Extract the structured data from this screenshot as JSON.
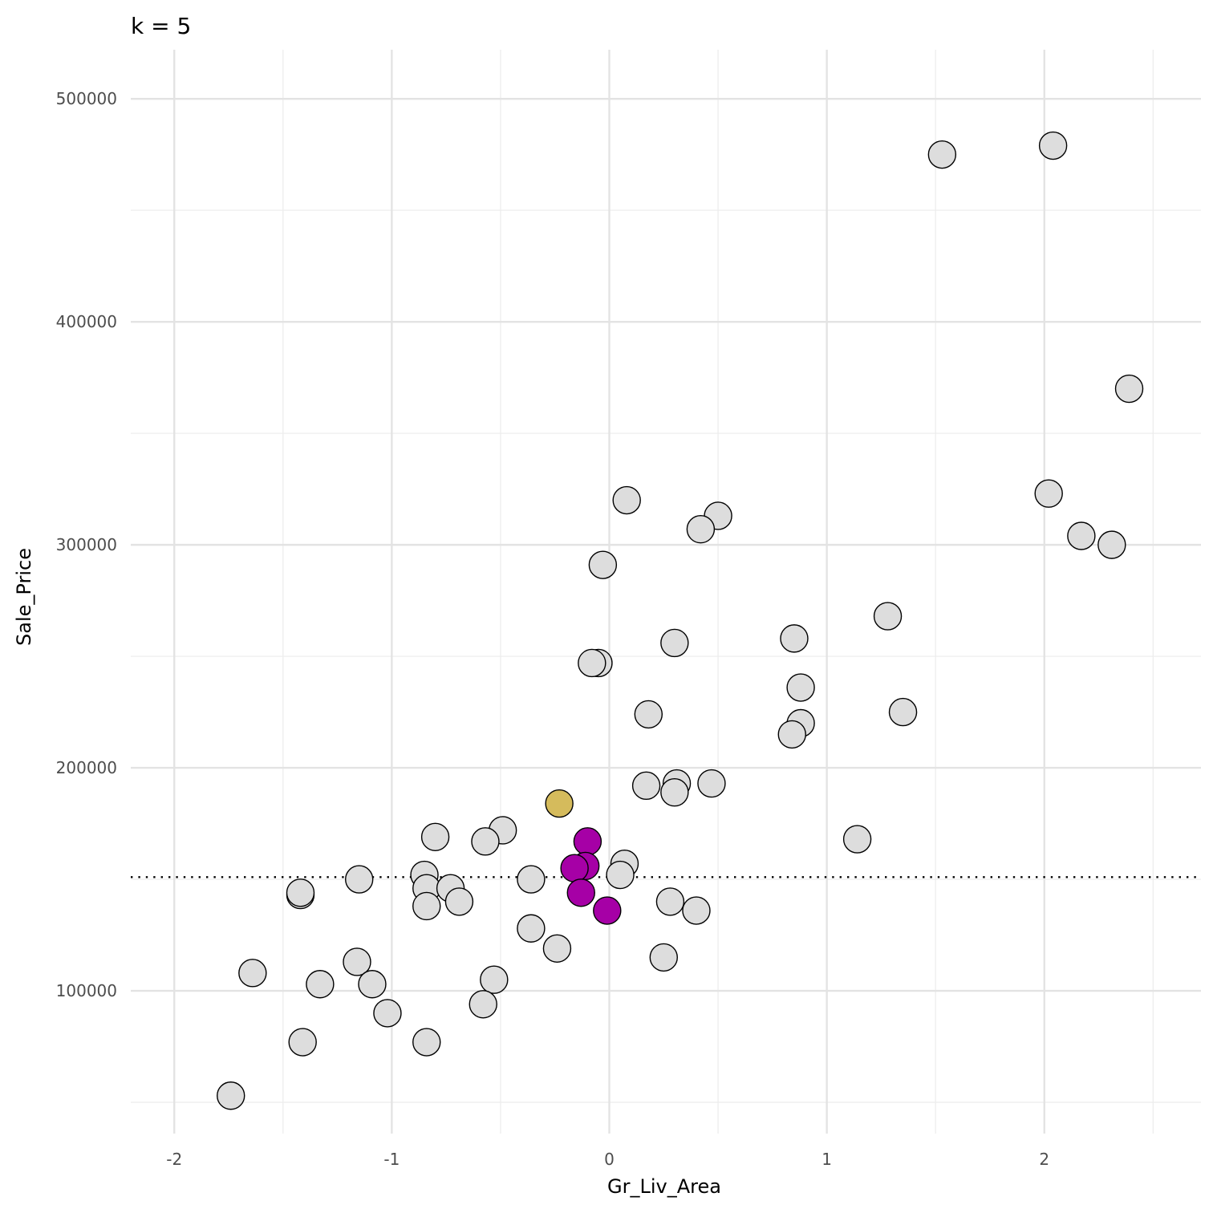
{
  "chart_data": {
    "type": "scatter",
    "title": "k = 5",
    "xlabel": "Gr_Liv_Area",
    "ylabel": "Sale_Price",
    "xlim": [
      -2.2,
      2.72
    ],
    "ylim": [
      36000,
      522000
    ],
    "x_ticks": [
      -2,
      -1,
      0,
      1,
      2
    ],
    "y_ticks": [
      100000,
      200000,
      300000,
      400000,
      500000
    ],
    "x_minor": [
      -1.5,
      -0.5,
      0.5,
      1.5,
      2.5
    ],
    "y_minor": [
      50000,
      150000,
      250000,
      350000,
      450000
    ],
    "x_tick_labels": [
      "-2",
      "-1",
      "0",
      "1",
      "2"
    ],
    "y_tick_labels": [
      "100000",
      "200000",
      "300000",
      "400000",
      "500000"
    ],
    "grid": true,
    "legend": "none",
    "reference_line": {
      "orientation": "horizontal",
      "style": "dotted",
      "y": 151000,
      "color": "#000000"
    },
    "colors": {
      "other": "#dddddd",
      "neighbor": "#a600a6",
      "query": "#d5bb5c",
      "outline": "#000000"
    },
    "points": [
      {
        "x": 1.53,
        "y": 475000,
        "group": "other"
      },
      {
        "x": 2.04,
        "y": 479000,
        "group": "other"
      },
      {
        "x": 2.39,
        "y": 370000,
        "group": "other"
      },
      {
        "x": 2.02,
        "y": 323000,
        "group": "other"
      },
      {
        "x": 2.17,
        "y": 304000,
        "group": "other"
      },
      {
        "x": 2.31,
        "y": 300000,
        "group": "other"
      },
      {
        "x": 0.08,
        "y": 320000,
        "group": "other"
      },
      {
        "x": 0.5,
        "y": 313000,
        "group": "other"
      },
      {
        "x": 0.42,
        "y": 307000,
        "group": "other"
      },
      {
        "x": -0.03,
        "y": 291000,
        "group": "other"
      },
      {
        "x": 1.28,
        "y": 268000,
        "group": "other"
      },
      {
        "x": 0.85,
        "y": 258000,
        "group": "other"
      },
      {
        "x": 0.3,
        "y": 256000,
        "group": "other"
      },
      {
        "x": -0.05,
        "y": 247000,
        "group": "other"
      },
      {
        "x": -0.08,
        "y": 247000,
        "group": "other"
      },
      {
        "x": 0.88,
        "y": 236000,
        "group": "other"
      },
      {
        "x": 1.35,
        "y": 225000,
        "group": "other"
      },
      {
        "x": 0.18,
        "y": 224000,
        "group": "other"
      },
      {
        "x": 0.88,
        "y": 220000,
        "group": "other"
      },
      {
        "x": 0.84,
        "y": 215000,
        "group": "other"
      },
      {
        "x": 0.47,
        "y": 193000,
        "group": "other"
      },
      {
        "x": 0.31,
        "y": 193000,
        "group": "other"
      },
      {
        "x": 0.17,
        "y": 192000,
        "group": "other"
      },
      {
        "x": 0.3,
        "y": 189000,
        "group": "other"
      },
      {
        "x": -0.49,
        "y": 172000,
        "group": "other"
      },
      {
        "x": -0.8,
        "y": 169000,
        "group": "other"
      },
      {
        "x": -0.57,
        "y": 167000,
        "group": "other"
      },
      {
        "x": 1.14,
        "y": 168000,
        "group": "other"
      },
      {
        "x": 0.07,
        "y": 157000,
        "group": "other"
      },
      {
        "x": 0.05,
        "y": 152000,
        "group": "other"
      },
      {
        "x": -0.85,
        "y": 152000,
        "group": "other"
      },
      {
        "x": -1.15,
        "y": 150000,
        "group": "other"
      },
      {
        "x": -0.36,
        "y": 150000,
        "group": "other"
      },
      {
        "x": -0.84,
        "y": 146000,
        "group": "other"
      },
      {
        "x": -0.73,
        "y": 146000,
        "group": "other"
      },
      {
        "x": -1.42,
        "y": 143000,
        "group": "other"
      },
      {
        "x": -1.42,
        "y": 144000,
        "group": "other"
      },
      {
        "x": -0.69,
        "y": 140000,
        "group": "other"
      },
      {
        "x": -0.84,
        "y": 138000,
        "group": "other"
      },
      {
        "x": 0.28,
        "y": 140000,
        "group": "other"
      },
      {
        "x": 0.4,
        "y": 136000,
        "group": "other"
      },
      {
        "x": -0.36,
        "y": 128000,
        "group": "other"
      },
      {
        "x": -0.24,
        "y": 119000,
        "group": "other"
      },
      {
        "x": 0.25,
        "y": 115000,
        "group": "other"
      },
      {
        "x": -1.16,
        "y": 113000,
        "group": "other"
      },
      {
        "x": -1.64,
        "y": 108000,
        "group": "other"
      },
      {
        "x": -0.53,
        "y": 105000,
        "group": "other"
      },
      {
        "x": -1.33,
        "y": 103000,
        "group": "other"
      },
      {
        "x": -1.09,
        "y": 103000,
        "group": "other"
      },
      {
        "x": -0.58,
        "y": 94000,
        "group": "other"
      },
      {
        "x": -1.02,
        "y": 90000,
        "group": "other"
      },
      {
        "x": -1.41,
        "y": 77000,
        "group": "other"
      },
      {
        "x": -0.84,
        "y": 77000,
        "group": "other"
      },
      {
        "x": -1.74,
        "y": 53000,
        "group": "other"
      },
      {
        "x": -0.1,
        "y": 167000,
        "group": "neighbor"
      },
      {
        "x": -0.11,
        "y": 156000,
        "group": "neighbor"
      },
      {
        "x": -0.16,
        "y": 155000,
        "group": "neighbor"
      },
      {
        "x": -0.13,
        "y": 144000,
        "group": "neighbor"
      },
      {
        "x": -0.01,
        "y": 136000,
        "group": "neighbor"
      },
      {
        "x": -0.23,
        "y": 184000,
        "group": "query"
      }
    ]
  }
}
